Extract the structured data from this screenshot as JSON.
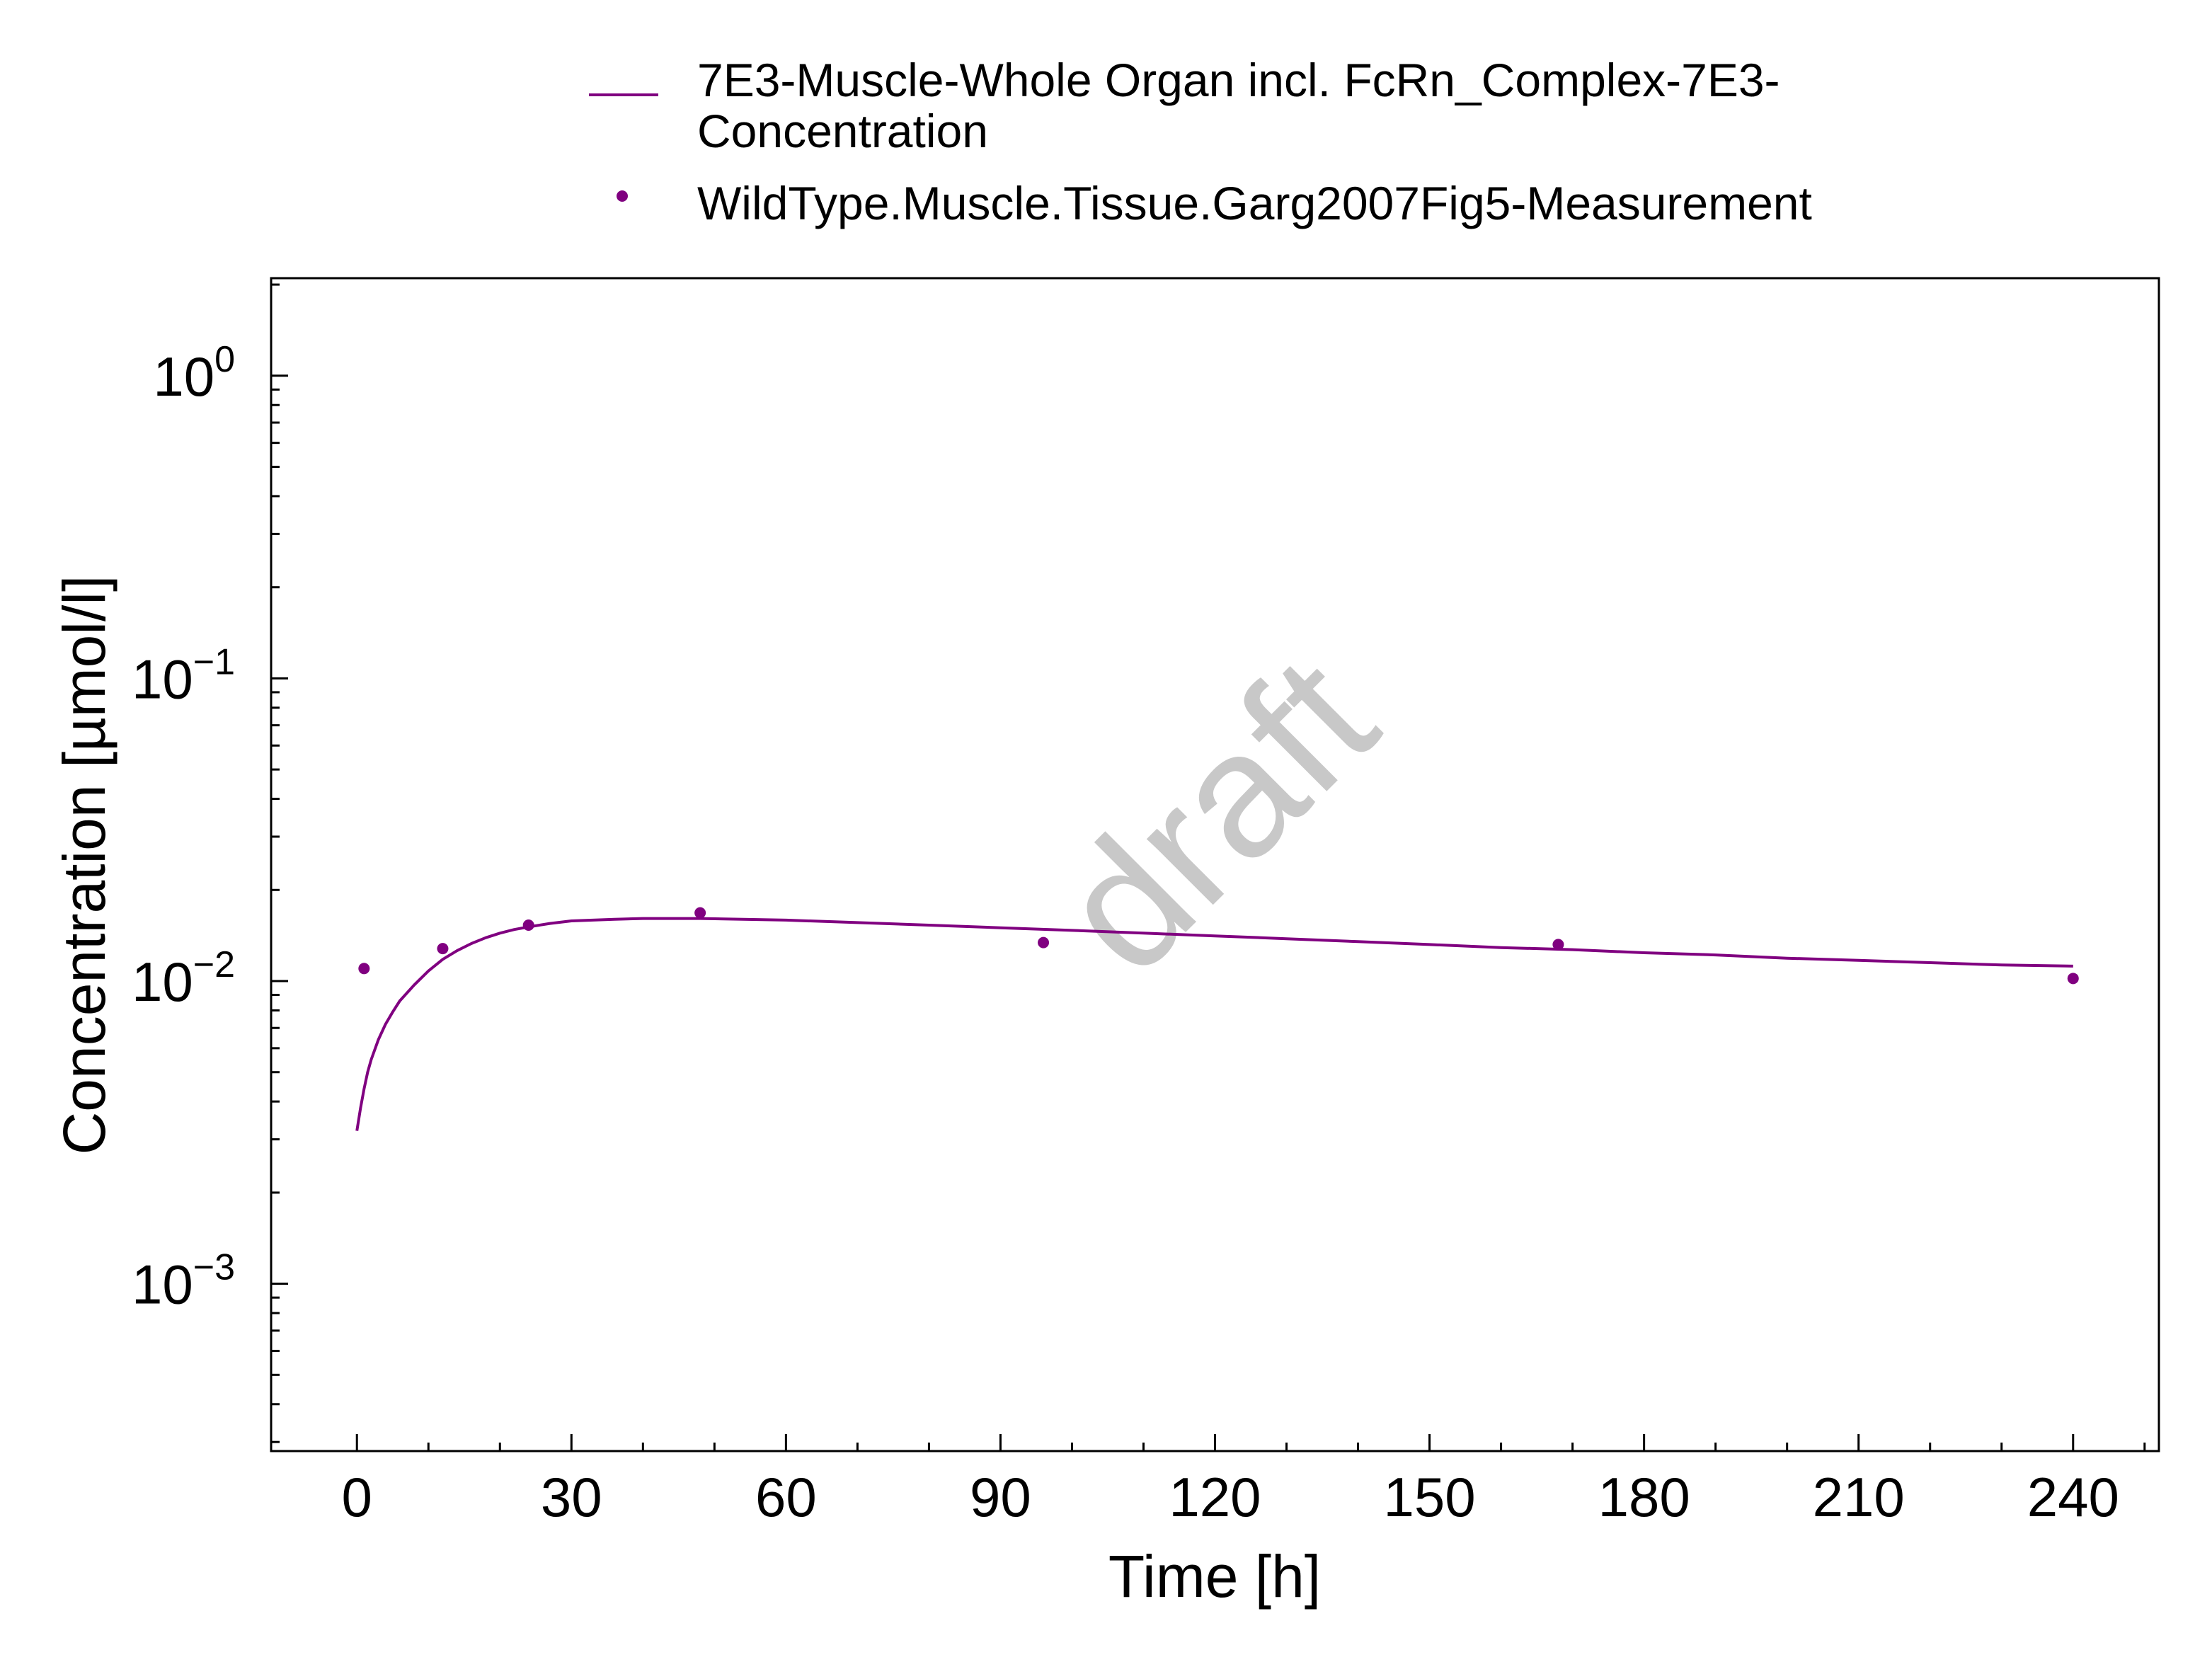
{
  "chart_data": {
    "type": "line",
    "xlabel": "Time [h]",
    "ylabel": "Concentration [µmol/l]",
    "xlim": [
      -12,
      252
    ],
    "ylim": [
      0.00028,
      2.1
    ],
    "yscale": "log",
    "xticks": [
      0,
      30,
      60,
      90,
      120,
      150,
      180,
      210,
      240
    ],
    "xtick_labels": [
      "0",
      "30",
      "60",
      "90",
      "120",
      "150",
      "180",
      "210",
      "240"
    ],
    "yticks": [
      {
        "value": 0.001,
        "base": "10",
        "exponent": "−3"
      },
      {
        "value": 0.01,
        "base": "10",
        "exponent": "−2"
      },
      {
        "value": 0.1,
        "base": "10",
        "exponent": "−1"
      },
      {
        "value": 1,
        "base": "10",
        "exponent": "0"
      }
    ],
    "legend_position": "top-center",
    "watermark": "draft",
    "grid": false,
    "series": [
      {
        "name": "7E3-Muscle-Whole Organ incl. FcRn_Complex-7E3-Concentration",
        "legend_lines": [
          "7E3-Muscle-Whole Organ incl. FcRn_Complex-7E3-",
          "Concentration"
        ],
        "kind": "line",
        "color": "#800080",
        "x": [
          0,
          0.5,
          1,
          1.5,
          2,
          3,
          4,
          5,
          6,
          8,
          10,
          12,
          14,
          16,
          18,
          20,
          22,
          24,
          27,
          30,
          33,
          36,
          40,
          44,
          48,
          54,
          60,
          70,
          80,
          90,
          100,
          110,
          120,
          130,
          140,
          150,
          160,
          170,
          180,
          190,
          200,
          210,
          220,
          230,
          240
        ],
        "y": [
          0.0032,
          0.0038,
          0.0044,
          0.005,
          0.0055,
          0.0064,
          0.0072,
          0.0079,
          0.0086,
          0.0097,
          0.0108,
          0.0118,
          0.0126,
          0.0133,
          0.0139,
          0.0144,
          0.0148,
          0.0151,
          0.0155,
          0.0158,
          0.0159,
          0.016,
          0.0161,
          0.0161,
          0.0161,
          0.016,
          0.0159,
          0.0156,
          0.0153,
          0.015,
          0.0147,
          0.0144,
          0.0141,
          0.0138,
          0.0135,
          0.0132,
          0.0129,
          0.0127,
          0.0124,
          0.0122,
          0.0119,
          0.0117,
          0.0115,
          0.0113,
          0.0112
        ]
      },
      {
        "name": "WildType.Muscle.Tissue.Garg2007Fig5-Measurement",
        "legend_lines": [
          "WildType.Muscle.Tissue.Garg2007Fig5-Measurement"
        ],
        "kind": "scatter",
        "color": "#800080",
        "x": [
          1,
          12,
          24,
          48,
          96,
          168,
          240
        ],
        "y": [
          0.011,
          0.0128,
          0.0153,
          0.0168,
          0.0134,
          0.0132,
          0.0102
        ]
      }
    ]
  }
}
